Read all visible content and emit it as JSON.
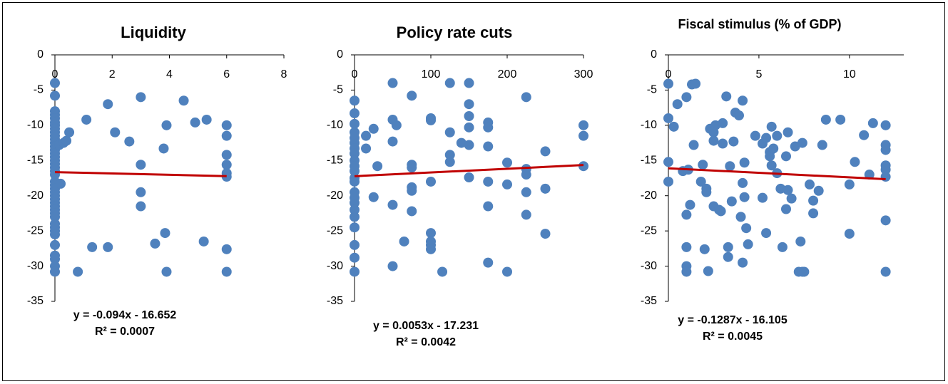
{
  "chart_data": [
    {
      "type": "scatter",
      "title": "Liquidity",
      "color": "#4f81bd",
      "x": [
        0,
        0,
        0,
        0,
        0,
        0,
        0,
        0,
        0,
        0,
        0,
        0,
        0,
        0,
        0,
        0,
        0,
        0,
        0,
        0,
        0,
        0,
        0,
        0,
        0,
        0,
        0,
        0,
        0,
        0,
        0,
        0,
        0,
        0,
        0,
        0,
        0,
        0,
        0,
        0,
        0,
        0.2,
        0.15,
        0.3,
        0.4,
        0.5,
        0.8,
        1.1,
        1.3,
        1.85,
        1.85,
        2.1,
        2.6,
        3,
        3,
        3,
        3,
        3.5,
        3.8,
        3.85,
        3.9,
        3.9,
        4.5,
        4.9,
        5.2,
        5.3,
        6,
        6,
        6,
        6,
        6,
        6,
        6,
        6
      ],
      "values": [
        -4,
        -5.8,
        -8,
        -8.5,
        -9,
        -9.6,
        -10,
        -10.5,
        -11,
        -11.5,
        -12,
        -12.5,
        -13,
        -13.5,
        -14,
        -14.5,
        -15,
        -15.5,
        -16,
        -16.5,
        -17,
        -18,
        -18.5,
        -19,
        -19.5,
        -20,
        -20.5,
        -21,
        -21.5,
        -22,
        -22.5,
        -23,
        -24,
        -24.5,
        -25,
        -25.5,
        -27,
        -28.5,
        -29,
        -30,
        -30.8,
        -18.3,
        -12.8,
        -12.5,
        -12.2,
        -11,
        -30.8,
        -9.2,
        -27.3,
        -7,
        -27.3,
        -11,
        -12.3,
        -6,
        -15.6,
        -19.5,
        -21.5,
        -26.8,
        -13.3,
        -25.3,
        -10,
        -30.8,
        -6.5,
        -9.6,
        -26.5,
        -9.2,
        -10,
        -11.5,
        -14.2,
        -15.6,
        -16.8,
        -17.3,
        -27.6,
        -30.8
      ],
      "trendline": {
        "x": [
          0,
          6
        ],
        "values": [
          -16.652,
          -17.216
        ],
        "color": "#c00000"
      },
      "annotations": [
        "y = -0.094x - 16.652",
        "R² = 0.0007"
      ],
      "xlim": [
        0,
        8
      ],
      "xticks": [
        0,
        2,
        4,
        6,
        8
      ],
      "ylim": [
        -35,
        0
      ],
      "yticks": [
        0,
        -5,
        -10,
        -15,
        -20,
        -25,
        -30,
        -35
      ]
    },
    {
      "type": "scatter",
      "title": "Policy rate cuts",
      "color": "#4f81bd",
      "x": [
        0,
        0,
        0,
        0,
        0,
        0,
        0,
        0,
        0,
        0,
        0,
        0,
        0,
        0,
        0,
        0,
        0,
        0,
        0,
        0,
        0,
        0,
        15,
        15,
        25,
        25,
        30,
        50,
        50,
        50,
        50,
        50,
        55,
        65,
        75,
        75,
        75,
        75,
        75,
        75,
        100,
        100,
        100,
        100,
        100,
        100,
        100,
        115,
        125,
        125,
        125,
        125,
        140,
        150,
        150,
        150,
        150,
        150,
        150,
        175,
        175,
        175,
        175,
        175,
        175,
        200,
        200,
        200,
        225,
        225,
        225,
        225,
        225,
        250,
        250,
        250,
        300,
        300,
        300
      ],
      "values": [
        -6.5,
        -8.3,
        -9.8,
        -11,
        -11.8,
        -12.5,
        -13.3,
        -14,
        -15,
        -15.8,
        -16.5,
        -17.5,
        -18,
        -19.5,
        -20.3,
        -21,
        -22,
        -23,
        -24.5,
        -27,
        -28.8,
        -30.8,
        -11.5,
        -13.3,
        -10.5,
        -20.2,
        -15.8,
        -4,
        -9.2,
        -12.3,
        -21.3,
        -30,
        -10,
        -26.5,
        -5.8,
        -15.6,
        -16,
        -18.8,
        -19.3,
        -22.2,
        -9,
        -9.3,
        -18,
        -25.3,
        -26.5,
        -27,
        -27.6,
        -30.8,
        -4,
        -11,
        -14.2,
        -15.2,
        -12.5,
        -4,
        -7,
        -8.7,
        -10.3,
        -12.8,
        -17.4,
        -9.6,
        -10.3,
        -13,
        -18,
        -21.5,
        -29.5,
        -15.3,
        -18.4,
        -30.8,
        -6,
        -16.2,
        -17,
        -19.5,
        -22.7,
        -13.7,
        -19,
        -25.4,
        -10,
        -11.5,
        -15.8
      ],
      "trendline": {
        "x": [
          0,
          300
        ],
        "values": [
          -17.231,
          -15.641
        ],
        "color": "#c00000"
      },
      "annotations": [
        "y = 0.0053x - 17.231",
        "R² = 0.0042"
      ],
      "xlim": [
        0,
        300
      ],
      "xticks": [
        0,
        100,
        200,
        300
      ],
      "ylim": [
        -35,
        0
      ],
      "yticks": [
        0,
        -5,
        -10,
        -15,
        -20,
        -25,
        -30,
        -35
      ]
    },
    {
      "type": "scatter",
      "title": "Fiscal stimulus (% of GDP)",
      "color": "#4f81bd",
      "x": [
        0,
        0,
        0,
        0,
        0.3,
        0.5,
        0.8,
        1,
        1,
        1,
        1,
        1,
        1.1,
        1.2,
        1.3,
        1.5,
        1.4,
        1.8,
        1.9,
        2,
        2.1,
        2.1,
        2.2,
        2.3,
        2.5,
        2.5,
        2.5,
        2.6,
        2.8,
        2.9,
        3,
        3,
        3.2,
        3.3,
        3.3,
        3.4,
        3.5,
        3.6,
        3.7,
        3.9,
        4,
        4.1,
        4.1,
        4.2,
        4.2,
        4.3,
        4.4,
        4.1,
        4.8,
        5.2,
        5.2,
        5.4,
        5.4,
        5.6,
        5.6,
        5.7,
        5.7,
        5.8,
        6,
        6,
        6.2,
        6.3,
        6.5,
        6.5,
        6.6,
        6.6,
        6.8,
        7,
        7.2,
        7.3,
        7.4,
        7.5,
        7.4,
        7.8,
        8,
        8,
        8.3,
        8.5,
        8.7,
        9.5,
        10,
        10,
        10.3,
        10.8,
        11.1,
        11.3,
        12,
        12,
        12,
        12,
        12,
        12,
        12,
        12
      ],
      "values": [
        -4.1,
        -9,
        -15.2,
        -18,
        -10.2,
        -7,
        -16.5,
        -6,
        -22.7,
        -27.3,
        -30,
        -30.8,
        -16.3,
        -21.3,
        -4.2,
        -4.1,
        -12.8,
        -18,
        -15.6,
        -27.6,
        -19,
        -19.5,
        -30.7,
        -10.5,
        -11,
        -12.2,
        -21.5,
        -10,
        -22,
        -22.2,
        -9.7,
        -12.6,
        -5.9,
        -27.3,
        -28.7,
        -15.8,
        -20.8,
        -12.3,
        -8.2,
        -8.6,
        -23,
        -6.5,
        -18.2,
        -15.3,
        -20.2,
        -24.6,
        -26.9,
        -29.5,
        -11.5,
        -20.3,
        -12.6,
        -25.3,
        -11.8,
        -13.8,
        -14.4,
        -10.2,
        -15.7,
        -13.3,
        -11.5,
        -16.8,
        -19,
        -27.3,
        -21.9,
        -14.4,
        -11,
        -19.2,
        -20.4,
        -13,
        -30.8,
        -26.5,
        -30.8,
        -30.8,
        -12.5,
        -18.4,
        -20.7,
        -22.5,
        -19.3,
        -12.8,
        -9.2,
        -9.2,
        -18.4,
        -25.4,
        -15.2,
        -11.4,
        -17,
        -9.7,
        -10,
        -12.8,
        -13.5,
        -15.7,
        -16.3,
        -17.3,
        -23.5,
        -30.8
      ],
      "trendline": {
        "x": [
          0,
          12
        ],
        "values": [
          -16.105,
          -17.6494
        ],
        "color": "#c00000"
      },
      "annotations": [
        "y = -0.1287x - 16.105",
        "R² = 0.0045"
      ],
      "xlim": [
        0,
        13
      ],
      "xticks": [
        0,
        5,
        10
      ],
      "ylim": [
        -35,
        0
      ],
      "yticks": [
        0,
        -5,
        -10,
        -15,
        -20,
        -25,
        -30,
        -35
      ]
    }
  ]
}
